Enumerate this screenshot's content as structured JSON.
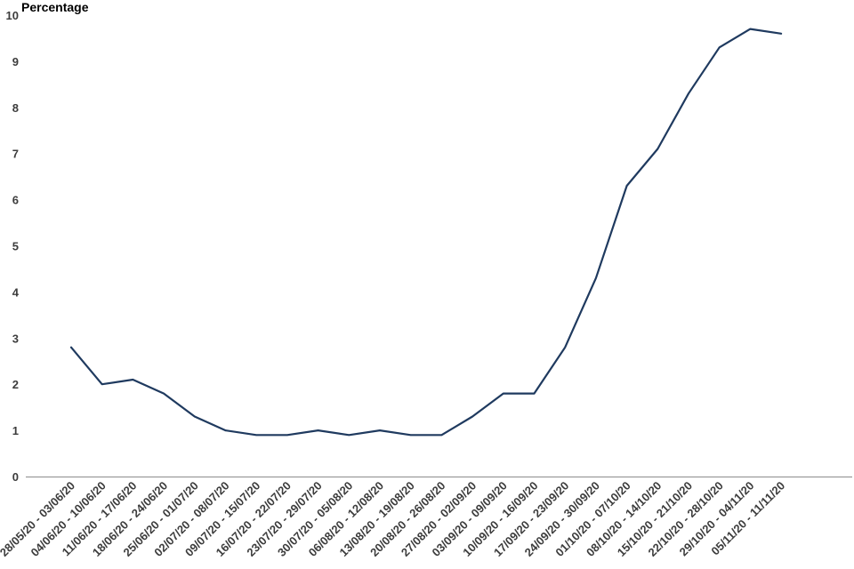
{
  "chart_data": {
    "type": "line",
    "title": "",
    "xlabel": "",
    "ylabel": "Percentage",
    "ylim": [
      0,
      10
    ],
    "yticks": [
      "0",
      "1",
      "2",
      "3",
      "4",
      "5",
      "6",
      "7",
      "8",
      "9",
      "10"
    ],
    "grid": false,
    "legend": "none",
    "categories": [
      "28/05/20 - 03/06/20",
      "04/06/20 - 10/06/20",
      "11/06/20 - 17/06/20",
      "18/06/20 - 24/06/20",
      "25/06/20 - 01/07/20",
      "02/07/20 - 08/07/20",
      "09/07/20 - 15/07/20",
      "16/07/20 - 22/07/20",
      "23/07/20 - 29/07/20",
      "30/07/20 - 05/08/20",
      "06/08/20 - 12/08/20",
      "13/08/20 - 19/08/20",
      "20/08/20 - 26/08/20",
      "27/08/20 - 02/09/20",
      "03/09/20 - 09/09/20",
      "10/09/20 - 16/09/20",
      "17/09/20 - 23/09/20",
      "24/09/20 - 30/09/20",
      "01/10/20 - 07/10/20",
      "08/10/20 - 14/10/20",
      "15/10/20 - 21/10/20",
      "22/10/20 - 28/10/20",
      "29/10/20 - 04/11/20",
      "05/11/20 - 11/11/20"
    ],
    "series": [
      {
        "values": [
          2.8,
          2.0,
          2.1,
          1.8,
          1.3,
          1.0,
          0.9,
          0.9,
          1.0,
          0.9,
          1.0,
          0.9,
          0.9,
          1.3,
          1.8,
          1.8,
          2.8,
          4.3,
          6.3,
          7.1,
          8.3,
          9.3,
          9.7,
          9.6
        ],
        "color": "#1f3a5f"
      }
    ],
    "colors": {
      "line": "#1f3a5f",
      "axis": "#8c8c8c",
      "tick_text": "#3c3c3c",
      "label_text": "#000000"
    }
  }
}
